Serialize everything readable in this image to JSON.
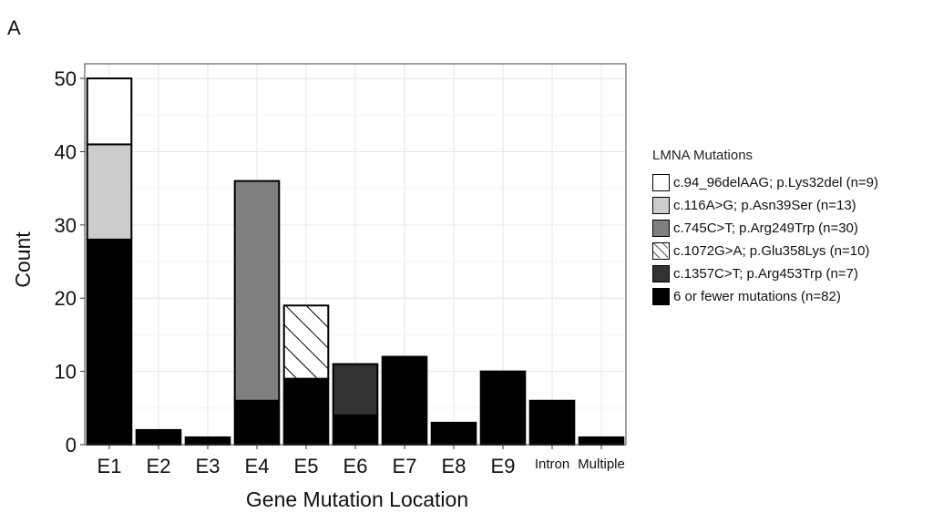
{
  "panel_label": "A",
  "chart_data": {
    "type": "bar",
    "stacked": true,
    "xlabel": "Gene Mutation Location",
    "ylabel": "Count",
    "ylim": [
      0,
      52
    ],
    "yticks": [
      0,
      10,
      20,
      30,
      40,
      50
    ],
    "grid": true,
    "legend_position": "right",
    "categories": [
      "E1",
      "E2",
      "E3",
      "E4",
      "E5",
      "E6",
      "E7",
      "E8",
      "E9",
      "Intron",
      "Multiple"
    ],
    "series": [
      {
        "key": "other",
        "values": [
          28,
          2,
          1,
          6,
          9,
          4,
          12,
          3,
          10,
          6,
          1
        ]
      },
      {
        "key": "c1357",
        "values": [
          0,
          0,
          0,
          0,
          0,
          7,
          0,
          0,
          0,
          0,
          0
        ]
      },
      {
        "key": "c1072",
        "values": [
          0,
          0,
          0,
          0,
          10,
          0,
          0,
          0,
          0,
          0,
          0
        ]
      },
      {
        "key": "c745",
        "values": [
          0,
          0,
          0,
          30,
          0,
          0,
          0,
          0,
          0,
          0,
          0
        ]
      },
      {
        "key": "c116",
        "values": [
          13,
          0,
          0,
          0,
          0,
          0,
          0,
          0,
          0,
          0,
          0
        ]
      },
      {
        "key": "c94",
        "values": [
          9,
          0,
          0,
          0,
          0,
          0,
          0,
          0,
          0,
          0,
          0
        ]
      }
    ],
    "legend": {
      "title": "LMNA Mutations",
      "items": [
        {
          "key": "c94",
          "label": "c.94_96delAAG; p.Lys32del (n=9)",
          "fill": "#ffffff",
          "pattern": "none"
        },
        {
          "key": "c116",
          "label": "c.116A>G; p.Asn39Ser (n=13)",
          "fill": "#cccccc",
          "pattern": "none"
        },
        {
          "key": "c745",
          "label": "c.745C>T; p.Arg249Trp (n=30)",
          "fill": "#808080",
          "pattern": "none"
        },
        {
          "key": "c1072",
          "label": "c.1072G>A; p.Glu358Lys (n=10)",
          "fill": "#ffffff",
          "pattern": "hatch"
        },
        {
          "key": "c1357",
          "label": "c.1357C>T; p.Arg453Trp (n=7)",
          "fill": "#333333",
          "pattern": "none"
        },
        {
          "key": "other",
          "label": "6 or fewer mutations (n=82)",
          "fill": "#000000",
          "pattern": "none"
        }
      ]
    }
  }
}
